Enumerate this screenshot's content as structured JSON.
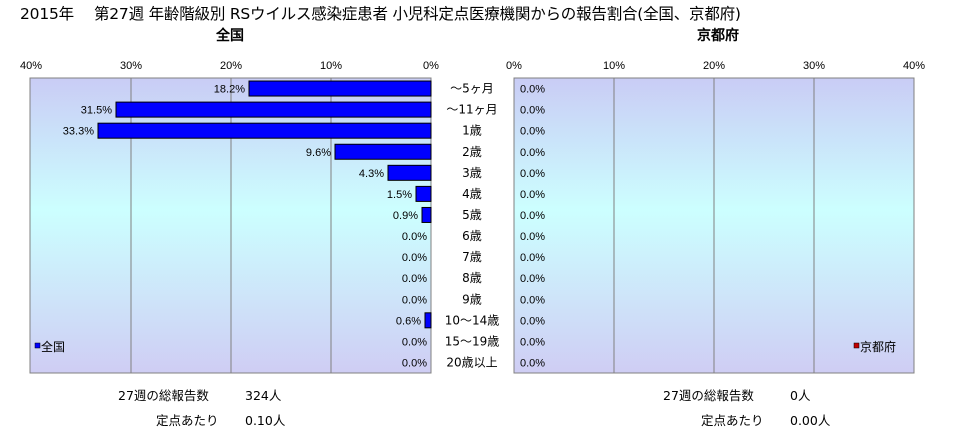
{
  "title": "2015年　 第27週 年齢階級別 RSウイルス感染症患者 小児科定点医療機関からの報告割合(全国、京都府)",
  "chart_data": [
    {
      "type": "bar",
      "orientation": "horizontal",
      "direction": "right-to-left",
      "title": "全国",
      "xlim": [
        0,
        40
      ],
      "ticks": [
        "0%",
        "10%",
        "20%",
        "30%",
        "40%"
      ],
      "grid": true,
      "legend_position": "bottom-left",
      "series": [
        {
          "name": "全国",
          "color": "#0000FF",
          "values": [
            18.2,
            31.5,
            33.3,
            9.6,
            4.3,
            1.5,
            0.9,
            0.0,
            0.0,
            0.0,
            0.0,
            0.6,
            0.0,
            0.0
          ],
          "labels": [
            "18.2%",
            "31.5%",
            "33.3%",
            "9.6%",
            "4.3%",
            "1.5%",
            "0.9%",
            "0.0%",
            "0.0%",
            "0.0%",
            "0.0%",
            "0.6%",
            "0.0%",
            "0.0%"
          ]
        }
      ]
    },
    {
      "type": "bar",
      "orientation": "horizontal",
      "direction": "left-to-right",
      "title": "京都府",
      "xlim": [
        0,
        40
      ],
      "ticks": [
        "0%",
        "10%",
        "20%",
        "30%",
        "40%"
      ],
      "grid": true,
      "legend_position": "bottom-right",
      "series": [
        {
          "name": "京都府",
          "color": "#C00000",
          "values": [
            0,
            0,
            0,
            0,
            0,
            0,
            0,
            0,
            0,
            0,
            0,
            0,
            0,
            0
          ],
          "labels": [
            "0.0%",
            "0.0%",
            "0.0%",
            "0.0%",
            "0.0%",
            "0.0%",
            "0.0%",
            "0.0%",
            "0.0%",
            "0.0%",
            "0.0%",
            "0.0%",
            "0.0%",
            "0.0%"
          ]
        }
      ]
    }
  ],
  "categories": [
    "～5ヶ月",
    "～11ヶ月",
    "1歳",
    "2歳",
    "3歳",
    "4歳",
    "5歳",
    "6歳",
    "7歳",
    "8歳",
    "9歳",
    "10～14歳",
    "15～19歳",
    "20歳以上"
  ],
  "footer": {
    "national": {
      "total_label": "27週の総報告数",
      "total_value": "324人",
      "per_label": "定点あたり",
      "per_value": "0.10人"
    },
    "kyoto": {
      "total_label": "27週の総報告数",
      "total_value": "0人",
      "per_label": "定点あたり",
      "per_value": "0.00人"
    }
  },
  "colors": {
    "plot_top": "#C9CCF5",
    "plot_mid": "#CCFFFF",
    "plot_bottom": "#CFCDF4"
  }
}
